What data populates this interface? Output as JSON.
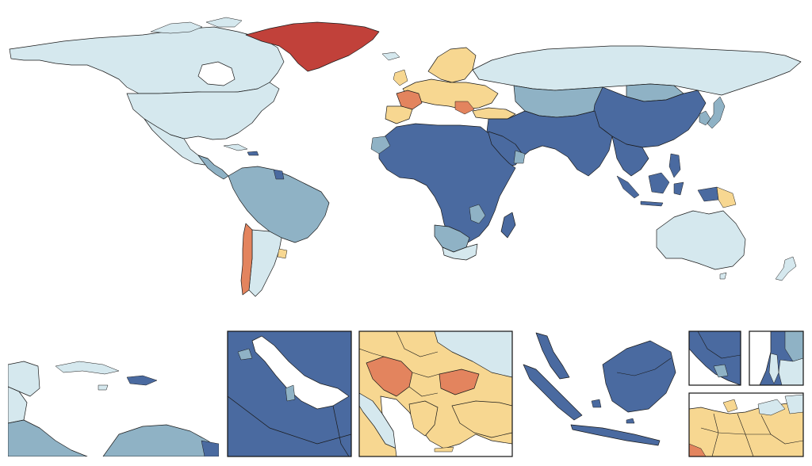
{
  "map": {
    "legend_present": false,
    "palette": {
      "class_1": "#d5e8ee",
      "class_2": "#8fb2c5",
      "class_3": "#4a6aa0",
      "class_4": "#f7d791",
      "class_5": "#e3845e",
      "class_6": "#c1413a",
      "ocean": "#ffffff",
      "border": "#1a1a1a"
    },
    "insets": [
      {
        "id": "caribbean"
      },
      {
        "id": "persian-gulf"
      },
      {
        "id": "balkans"
      },
      {
        "id": "southeast-asia"
      },
      {
        "id": "west-africa"
      },
      {
        "id": "eastern-mediterranean"
      },
      {
        "id": "northern-europe"
      }
    ]
  }
}
